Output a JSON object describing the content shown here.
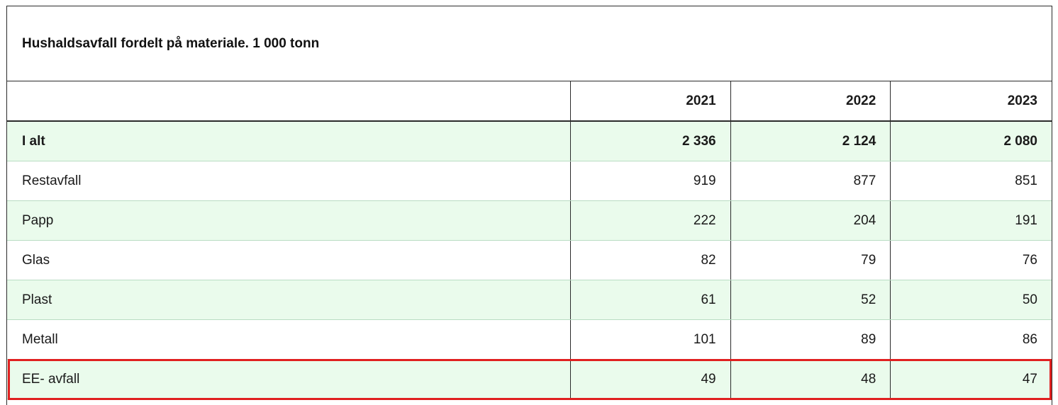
{
  "table": {
    "caption": "Hushaldsavfall fordelt på materiale. 1 000 tonn",
    "header": {
      "label": "",
      "years": [
        "2021",
        "2022",
        "2023"
      ]
    },
    "rows": [
      {
        "label": "I alt",
        "values": [
          "2 336",
          "2 124",
          "2 080"
        ],
        "bold": true
      },
      {
        "label": "Restavfall",
        "values": [
          "919",
          "877",
          "851"
        ],
        "bold": false
      },
      {
        "label": "Papp",
        "values": [
          "222",
          "204",
          "191"
        ],
        "bold": false
      },
      {
        "label": "Glas",
        "values": [
          "82",
          "79",
          "76"
        ],
        "bold": false
      },
      {
        "label": "Plast",
        "values": [
          "61",
          "52",
          "50"
        ],
        "bold": false
      },
      {
        "label": "Metall",
        "values": [
          "101",
          "89",
          "86"
        ],
        "bold": false
      },
      {
        "label": "EE- avfall",
        "values": [
          "49",
          "48",
          "47"
        ],
        "bold": false
      }
    ],
    "highlighted_row": "EE- avfall"
  },
  "colors": {
    "row_tint": "#eafbec",
    "border": "#2b2b2b",
    "highlight": "#e02020"
  }
}
